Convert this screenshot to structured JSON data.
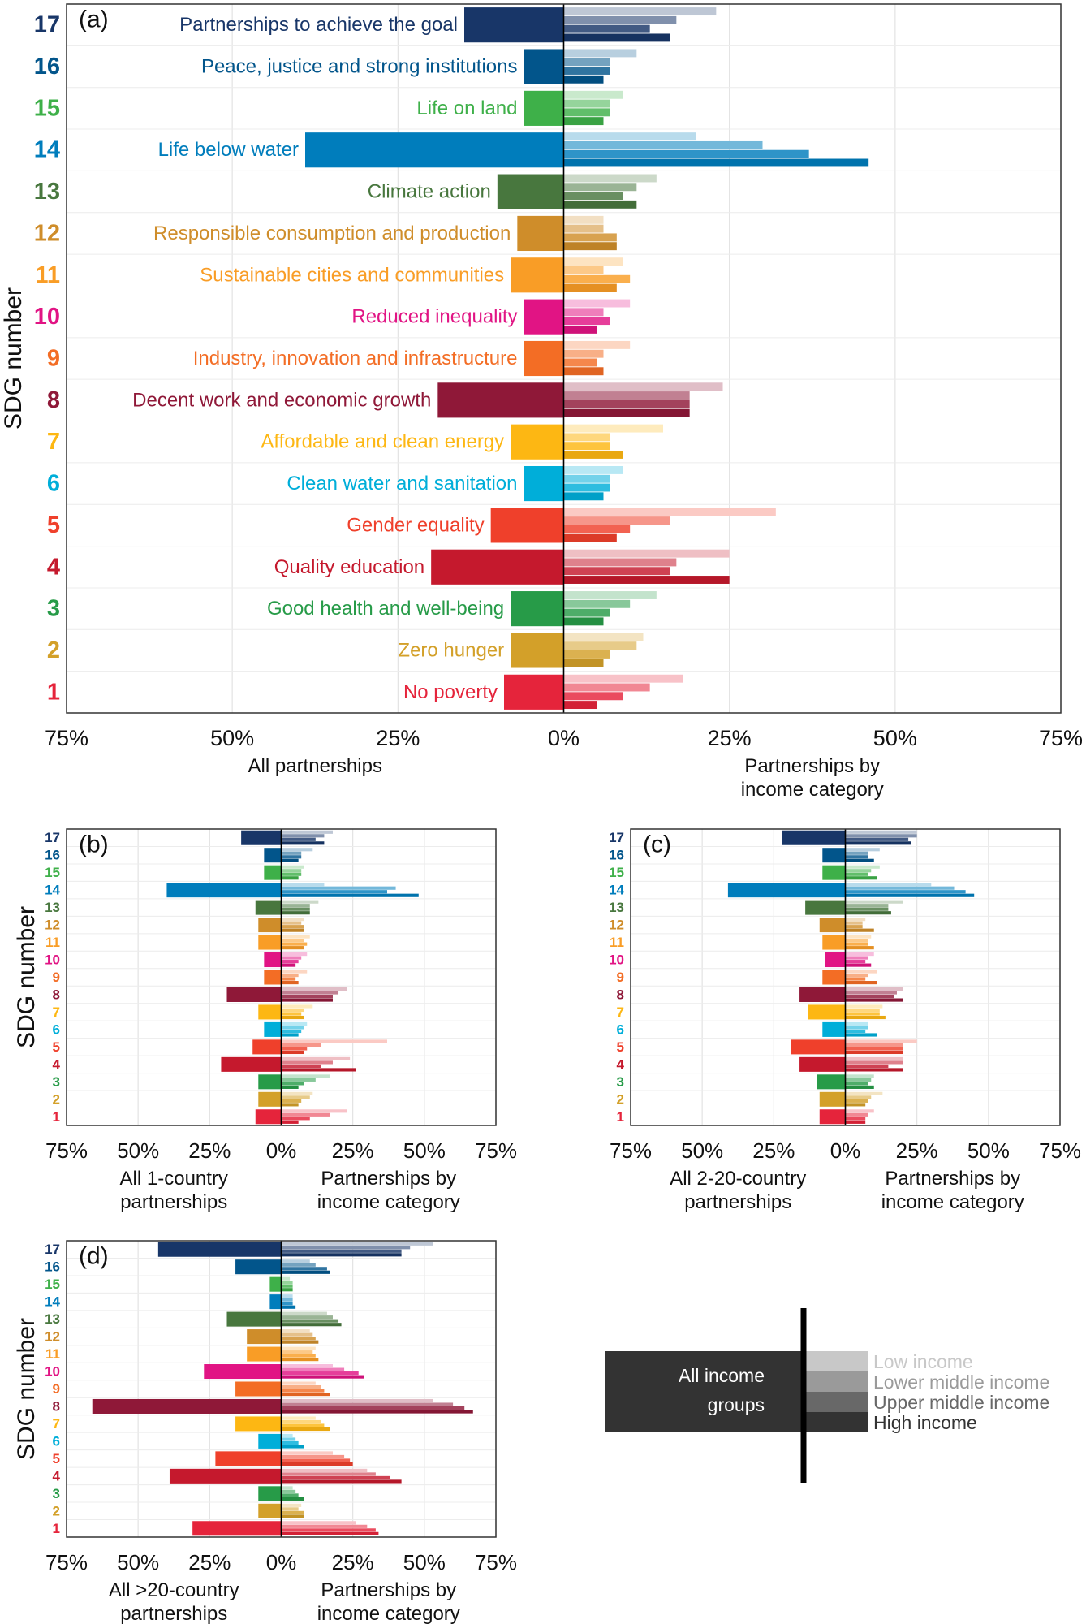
{
  "sdgs": [
    {
      "num": "1",
      "label": "No poverty",
      "color": "#e5243b"
    },
    {
      "num": "2",
      "label": "Zero hunger",
      "color": "#d3a029"
    },
    {
      "num": "3",
      "label": "Good health and well-being",
      "color": "#279b48"
    },
    {
      "num": "4",
      "label": "Quality education",
      "color": "#c5192d"
    },
    {
      "num": "5",
      "label": "Gender equality",
      "color": "#ef402b"
    },
    {
      "num": "6",
      "label": "Clean water and sanitation",
      "color": "#00aed9"
    },
    {
      "num": "7",
      "label": "Affordable and clean energy",
      "color": "#fdb713"
    },
    {
      "num": "8",
      "label": "Decent work and economic growth",
      "color": "#8f1838"
    },
    {
      "num": "9",
      "label": "Industry, innovation and infrastructure",
      "color": "#f36d25"
    },
    {
      "num": "10",
      "label": "Reduced inequality",
      "color": "#e11484"
    },
    {
      "num": "11",
      "label": "Sustainable cities and communities",
      "color": "#f99d26"
    },
    {
      "num": "12",
      "label": "Responsible consumption and production",
      "color": "#cf8d2a"
    },
    {
      "num": "13",
      "label": "Climate action",
      "color": "#48773e"
    },
    {
      "num": "14",
      "label": "Life below water",
      "color": "#007dbc"
    },
    {
      "num": "15",
      "label": "Life on land",
      "color": "#3eb049"
    },
    {
      "num": "16",
      "label": "Peace, justice and strong institutions",
      "color": "#02558b"
    },
    {
      "num": "17",
      "label": "Partnerships to achieve the goal",
      "color": "#183668"
    }
  ],
  "y_axis_label": "SDG number",
  "x_tick_labels": [
    "75%",
    "50%",
    "25%",
    "0%",
    "25%",
    "50%",
    "75%"
  ],
  "income_legend": {
    "all_label_line1": "All income",
    "all_label_line2": "groups",
    "categories": [
      "Low income",
      "Lower middle income",
      "Upper middle income",
      "High income"
    ],
    "colors": [
      "#c8c8c8",
      "#9a9a9a",
      "#686868",
      "#333333"
    ]
  },
  "chart_data": [
    {
      "panel": "(a)",
      "type": "bar",
      "xlabel_left": "All partnerships",
      "xlabel_right": [
        "Partnerships by",
        "income category"
      ],
      "xlim": [
        -75,
        75
      ],
      "categories": [
        "1",
        "2",
        "3",
        "4",
        "5",
        "6",
        "7",
        "8",
        "9",
        "10",
        "11",
        "12",
        "13",
        "14",
        "15",
        "16",
        "17"
      ],
      "all": [
        9,
        8,
        8,
        20,
        11,
        6,
        8,
        19,
        6,
        6,
        8,
        7,
        10,
        39,
        6,
        6,
        15
      ],
      "by_income": [
        [
          18,
          13,
          9,
          5
        ],
        [
          12,
          11,
          7,
          6
        ],
        [
          14,
          10,
          7,
          6
        ],
        [
          25,
          17,
          16,
          25
        ],
        [
          32,
          16,
          10,
          8
        ],
        [
          9,
          7,
          7,
          6
        ],
        [
          15,
          7,
          7,
          9
        ],
        [
          24,
          19,
          19,
          19
        ],
        [
          10,
          6,
          5,
          6
        ],
        [
          10,
          6,
          7,
          5
        ],
        [
          9,
          6,
          10,
          8
        ],
        [
          6,
          6,
          8,
          8
        ],
        [
          14,
          11,
          9,
          11
        ],
        [
          20,
          30,
          37,
          46
        ],
        [
          9,
          7,
          7,
          6
        ],
        [
          11,
          7,
          7,
          6
        ],
        [
          23,
          17,
          13,
          16
        ]
      ]
    },
    {
      "panel": "(b)",
      "type": "bar",
      "xlabel_left": [
        "All 1-country",
        "partnerships"
      ],
      "xlabel_right": [
        "Partnerships by",
        "income category"
      ],
      "xlim": [
        -75,
        75
      ],
      "categories": [
        "1",
        "2",
        "3",
        "4",
        "5",
        "6",
        "7",
        "8",
        "9",
        "10",
        "11",
        "12",
        "13",
        "14",
        "15",
        "16",
        "17"
      ],
      "all": [
        9,
        8,
        8,
        21,
        10,
        6,
        8,
        19,
        6,
        6,
        8,
        8,
        9,
        40,
        6,
        6,
        14
      ],
      "by_income": [
        [
          23,
          17,
          10,
          6
        ],
        [
          11,
          10,
          7,
          6
        ],
        [
          17,
          12,
          8,
          6
        ],
        [
          24,
          18,
          14,
          26
        ],
        [
          37,
          14,
          9,
          8
        ],
        [
          9,
          8,
          7,
          6
        ],
        [
          11,
          8,
          7,
          8
        ],
        [
          23,
          20,
          18,
          18
        ],
        [
          9,
          6,
          5,
          6
        ],
        [
          9,
          7,
          6,
          5
        ],
        [
          10,
          8,
          9,
          8
        ],
        [
          8,
          7,
          8,
          8
        ],
        [
          13,
          10,
          10,
          10
        ],
        [
          15,
          40,
          37,
          48
        ],
        [
          8,
          7,
          7,
          6
        ],
        [
          11,
          7,
          7,
          6
        ],
        [
          18,
          15,
          12,
          15
        ]
      ]
    },
    {
      "panel": "(c)",
      "type": "bar",
      "xlabel_left": [
        "All 2-20-country",
        "partnerships"
      ],
      "xlabel_right": [
        "Partnerships by",
        "income category"
      ],
      "xlim": [
        -75,
        75
      ],
      "categories": [
        "1",
        "2",
        "3",
        "4",
        "5",
        "6",
        "7",
        "8",
        "9",
        "10",
        "11",
        "12",
        "13",
        "14",
        "15",
        "16",
        "17"
      ],
      "all": [
        9,
        9,
        10,
        16,
        19,
        8,
        13,
        16,
        8,
        7,
        8,
        9,
        14,
        41,
        8,
        8,
        22
      ],
      "by_income": [
        [
          10,
          8,
          7,
          7
        ],
        [
          13,
          9,
          8,
          7
        ],
        [
          10,
          9,
          8,
          10
        ],
        [
          20,
          20,
          15,
          20
        ],
        [
          25,
          20,
          20,
          20
        ],
        [
          8,
          8,
          7,
          11
        ],
        [
          13,
          12,
          12,
          14
        ],
        [
          20,
          18,
          17,
          20
        ],
        [
          11,
          8,
          7,
          11
        ],
        [
          10,
          8,
          7,
          9
        ],
        [
          9,
          8,
          8,
          10
        ],
        [
          7,
          6,
          6,
          10
        ],
        [
          20,
          15,
          15,
          16
        ],
        [
          30,
          38,
          42,
          45
        ],
        [
          12,
          9,
          8,
          11
        ],
        [
          12,
          8,
          8,
          10
        ],
        [
          25,
          25,
          22,
          23
        ]
      ]
    },
    {
      "panel": "(d)",
      "type": "bar",
      "xlabel_left": [
        "All >20-country",
        "partnerships"
      ],
      "xlabel_right": [
        "Partnerships by",
        "income category"
      ],
      "xlim": [
        -75,
        75
      ],
      "categories": [
        "1",
        "2",
        "3",
        "4",
        "5",
        "6",
        "7",
        "8",
        "9",
        "10",
        "11",
        "12",
        "13",
        "14",
        "15",
        "16",
        "17"
      ],
      "all": [
        31,
        8,
        8,
        39,
        23,
        8,
        16,
        66,
        16,
        27,
        12,
        12,
        19,
        4,
        4,
        16,
        43
      ],
      "by_income": [
        [
          26,
          30,
          33,
          34
        ],
        [
          7,
          6,
          8,
          8
        ],
        [
          4,
          5,
          6,
          8
        ],
        [
          30,
          33,
          38,
          42
        ],
        [
          18,
          22,
          24,
          25
        ],
        [
          4,
          5,
          6,
          8
        ],
        [
          12,
          14,
          15,
          17
        ],
        [
          53,
          60,
          64,
          67
        ],
        [
          12,
          14,
          15,
          17
        ],
        [
          18,
          22,
          27,
          29
        ],
        [
          12,
          11,
          12,
          13
        ],
        [
          10,
          11,
          12,
          13
        ],
        [
          16,
          18,
          20,
          21
        ],
        [
          4,
          4,
          4,
          5
        ],
        [
          3,
          4,
          4,
          4
        ],
        [
          10,
          12,
          16,
          17
        ],
        [
          53,
          45,
          42,
          42
        ]
      ]
    }
  ]
}
